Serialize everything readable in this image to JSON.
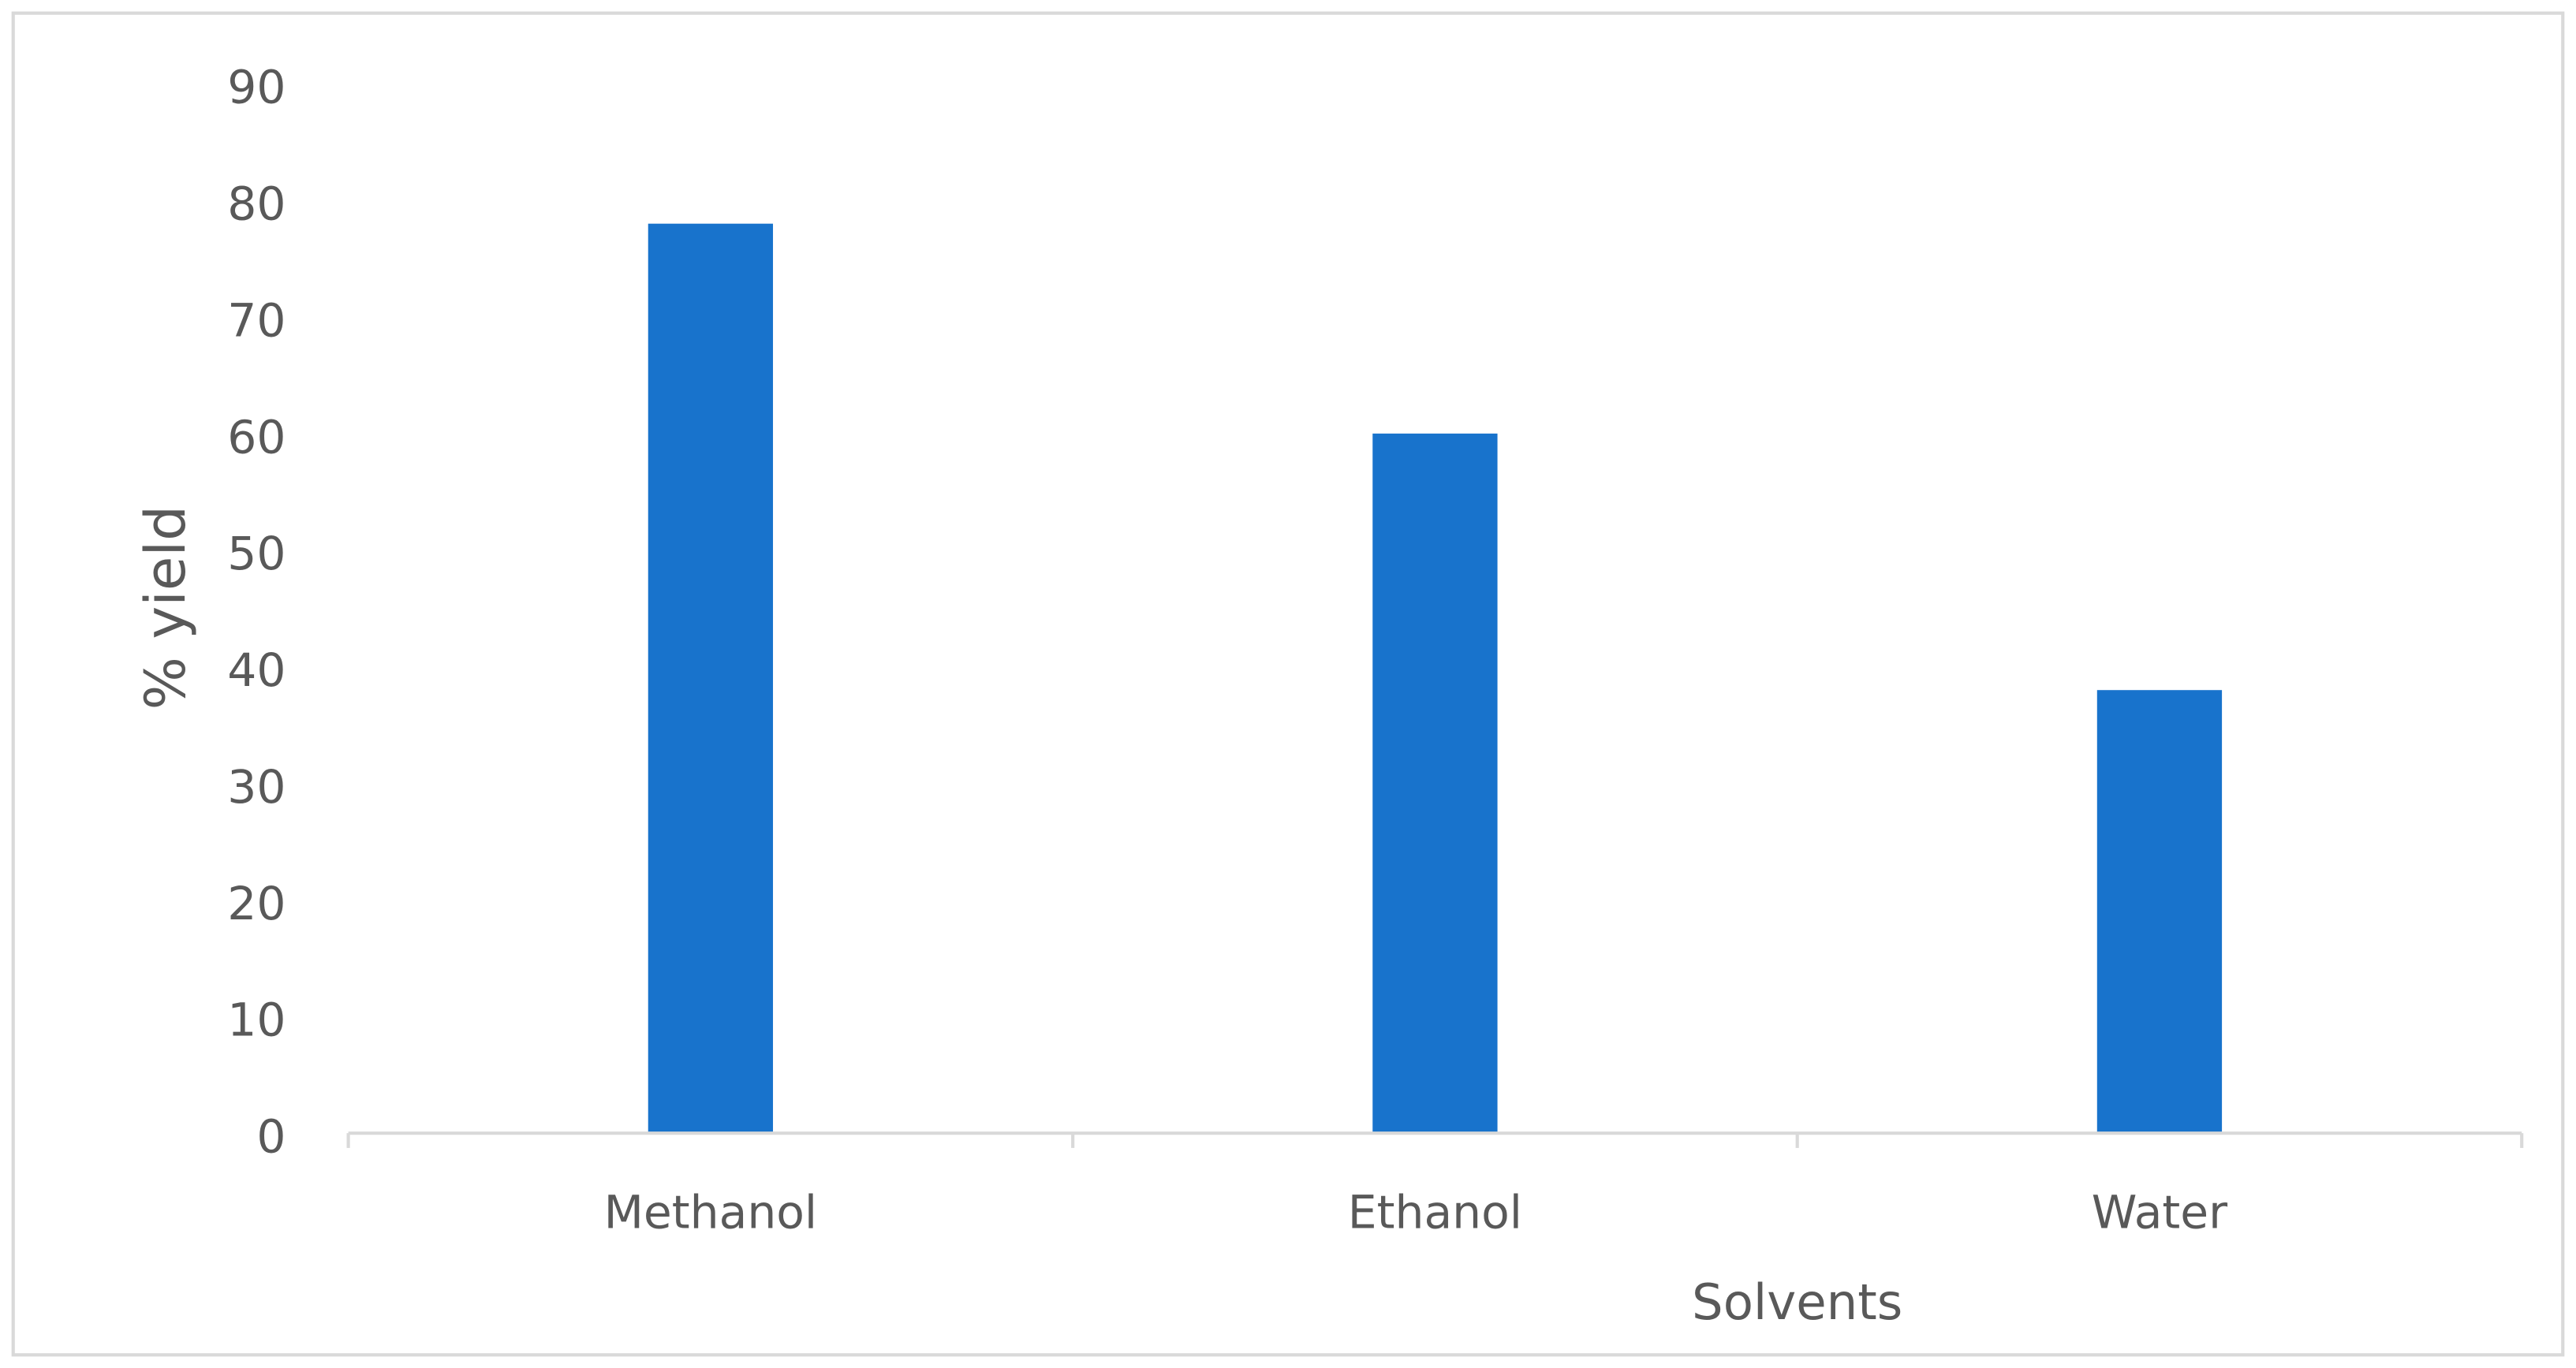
{
  "chart_data": {
    "type": "bar",
    "x_label": "Solvents",
    "y_label": "% yield",
    "categories": [
      "Methanol",
      "Ethanol",
      "Water"
    ],
    "values": [
      78,
      60,
      38
    ],
    "color": "#1873cc",
    "ylim": [
      0,
      90
    ],
    "yticks": [
      0,
      10,
      20,
      30,
      40,
      50,
      60,
      70,
      80,
      90
    ],
    "grid": false
  }
}
